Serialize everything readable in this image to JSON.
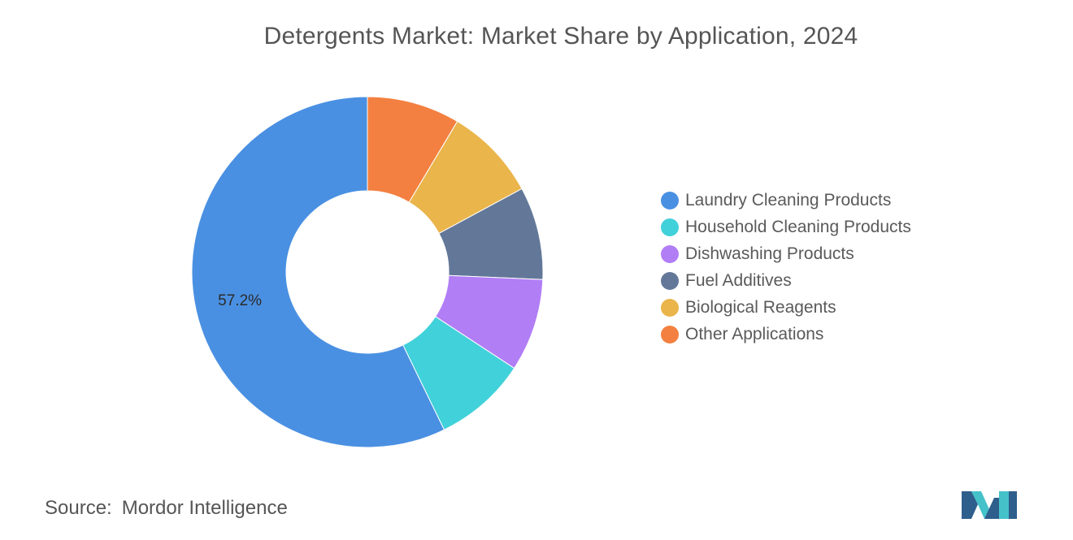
{
  "title": "Detergents Market: Market Share by Application, 2024",
  "chart_data": {
    "type": "pie",
    "style": "donut",
    "title": "Detergents Market: Market Share by Application, 2024",
    "series": [
      {
        "name": "Other Applications",
        "value": 8.56,
        "color": "#F38040"
      },
      {
        "name": "Biological Reagents",
        "value": 8.56,
        "color": "#EAB54B"
      },
      {
        "name": "Fuel Additives",
        "value": 8.56,
        "color": "#637899"
      },
      {
        "name": "Dishwashing Products",
        "value": 8.56,
        "color": "#B17EF6"
      },
      {
        "name": "Household Cleaning Products",
        "value": 8.56,
        "color": "#41D1DA"
      },
      {
        "name": "Laundry Cleaning Products",
        "value": 57.2,
        "color": "#4A90E2"
      }
    ],
    "data_labels": [
      {
        "series": "Laundry Cleaning Products",
        "text": "57.2%"
      }
    ],
    "legend_position": "right"
  },
  "legend": [
    {
      "label": "Laundry Cleaning Products",
      "color": "#4A90E2"
    },
    {
      "label": "Household Cleaning Products",
      "color": "#41D1DA"
    },
    {
      "label": "Dishwashing Products",
      "color": "#B17EF6"
    },
    {
      "label": "Fuel Additives",
      "color": "#637899"
    },
    {
      "label": "Biological Reagents",
      "color": "#EAB54B"
    },
    {
      "label": "Other Applications",
      "color": "#F38040"
    }
  ],
  "source": {
    "label": "Source:",
    "value": "Mordor Intelligence"
  },
  "logo": {
    "icon": "mordor-intelligence-logo-icon",
    "colors": [
      "#2E5E8C",
      "#44C1C9"
    ]
  }
}
